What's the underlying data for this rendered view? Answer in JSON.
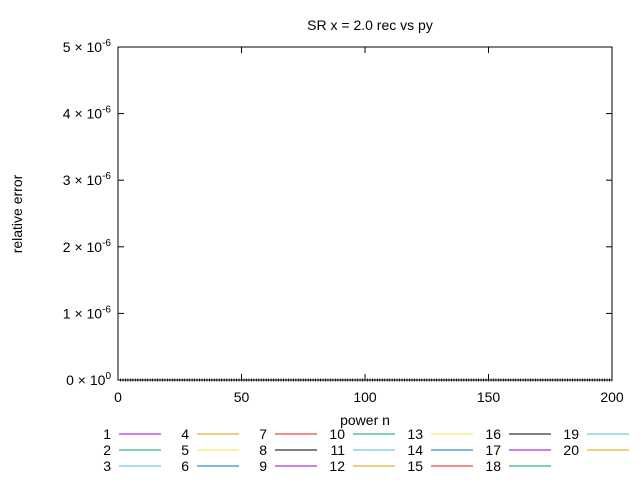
{
  "chart_data": {
    "type": "line",
    "title": "SR x = 2.0 rec vs py",
    "xlabel": "power n",
    "ylabel": "relative error",
    "xlim": [
      0,
      200
    ],
    "ylim": [
      0,
      5e-06
    ],
    "x_ticks": [
      {
        "value": 0,
        "label": "0"
      },
      {
        "value": 50,
        "label": "50"
      },
      {
        "value": 100,
        "label": "100"
      },
      {
        "value": 150,
        "label": "150"
      },
      {
        "value": 200,
        "label": "200"
      }
    ],
    "y_ticks": [
      {
        "value": 0,
        "mantissa": "0 × 10",
        "exp": "0"
      },
      {
        "value": 1e-06,
        "mantissa": "1 × 10",
        "exp": "-6"
      },
      {
        "value": 2e-06,
        "mantissa": "2 × 10",
        "exp": "-6"
      },
      {
        "value": 3e-06,
        "mantissa": "3 × 10",
        "exp": "-6"
      },
      {
        "value": 4e-06,
        "mantissa": "4 × 10",
        "exp": "-6"
      },
      {
        "value": 5e-06,
        "mantissa": "5 × 10",
        "exp": "-6"
      }
    ],
    "x_range": [
      1,
      200
    ],
    "grid": false,
    "legend_position": "bottom",
    "series": [
      {
        "name": "1",
        "color": "#9400d3",
        "value": 0
      },
      {
        "name": "2",
        "color": "#009e73",
        "value": 0
      },
      {
        "name": "3",
        "color": "#56b4e9",
        "value": 0
      },
      {
        "name": "4",
        "color": "#e69f00",
        "value": 0
      },
      {
        "name": "5",
        "color": "#f0e442",
        "value": 0
      },
      {
        "name": "6",
        "color": "#0072b2",
        "value": 0
      },
      {
        "name": "7",
        "color": "#e51e10",
        "value": 0
      },
      {
        "name": "8",
        "color": "#000000",
        "value": 0
      },
      {
        "name": "9",
        "color": "#9400d3",
        "value": 0
      },
      {
        "name": "10",
        "color": "#009e73",
        "value": 0
      },
      {
        "name": "11",
        "color": "#56b4e9",
        "value": 0
      },
      {
        "name": "12",
        "color": "#e69f00",
        "value": 0
      },
      {
        "name": "13",
        "color": "#f0e442",
        "value": 0
      },
      {
        "name": "14",
        "color": "#0072b2",
        "value": 0
      },
      {
        "name": "15",
        "color": "#e51e10",
        "value": 0
      },
      {
        "name": "16",
        "color": "#000000",
        "value": 0
      },
      {
        "name": "17",
        "color": "#9400d3",
        "value": 0
      },
      {
        "name": "18",
        "color": "#009e73",
        "value": 0
      },
      {
        "name": "19",
        "color": "#56b4e9",
        "value": 0
      },
      {
        "name": "20",
        "color": "#e69f00",
        "value": 0
      }
    ]
  }
}
